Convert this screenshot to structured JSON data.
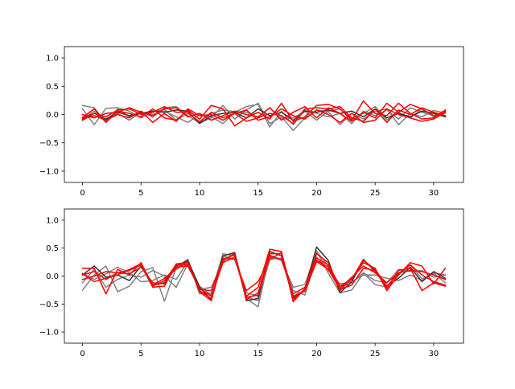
{
  "chart_data": [
    {
      "type": "line",
      "title": "",
      "xlabel": "",
      "ylabel": "",
      "xlim": [
        -1.55,
        32.55
      ],
      "ylim": [
        -1.2,
        1.2
      ],
      "xticks": [
        "0",
        "5",
        "10",
        "15",
        "20",
        "25",
        "30"
      ],
      "yticks": [
        "−1.0",
        "−0.5",
        "0.0",
        "0.5",
        "1.0"
      ],
      "x": [
        0,
        1,
        2,
        3,
        4,
        5,
        6,
        7,
        8,
        9,
        10,
        11,
        12,
        13,
        14,
        15,
        16,
        17,
        18,
        19,
        20,
        21,
        22,
        23,
        24,
        25,
        26,
        27,
        28,
        29,
        30,
        31
      ],
      "series": [
        {
          "color": "#808080",
          "values": [
            0.16,
            0.12,
            -0.14,
            0.1,
            -0.04,
            0.06,
            -0.05,
            0.12,
            0.14,
            -0.02,
            -0.15,
            -0.06,
            0.16,
            -0.08,
            0.08,
            0.2,
            -0.16,
            -0.04,
            -0.28,
            -0.06,
            0.08,
            0.05,
            -0.18,
            0.02,
            -0.08,
            0.06,
            0.1,
            -0.18,
            0.02,
            -0.04,
            0.07,
            0.03
          ]
        },
        {
          "color": "#808080",
          "values": [
            0.1,
            -0.18,
            0.11,
            0.12,
            0.06,
            -0.06,
            0.04,
            0.09,
            -0.1,
            0.02,
            -0.12,
            0.02,
            0.08,
            0.05,
            0.04,
            -0.05,
            0.12,
            -0.08,
            -0.06,
            0.06,
            -0.1,
            0.06,
            0.1,
            -0.08,
            0.02,
            0.14,
            -0.1,
            0.04,
            -0.06,
            0.1,
            -0.04,
            0.05
          ]
        },
        {
          "color": "#808080",
          "values": [
            -0.08,
            0.06,
            -0.12,
            0.02,
            -0.1,
            0.04,
            0.0,
            0.06,
            -0.04,
            -0.14,
            0.0,
            -0.04,
            -0.16,
            0.04,
            0.14,
            0.18,
            -0.22,
            0.06,
            -0.18,
            0.08,
            0.02,
            -0.04,
            0.02,
            -0.16,
            0.06,
            -0.02,
            0.08,
            -0.08,
            0.12,
            0.04,
            -0.02,
            0.02
          ]
        },
        {
          "color": "#333333",
          "values": [
            -0.1,
            0.02,
            -0.08,
            0.04,
            -0.02,
            0.02,
            0.06,
            0.04,
            0.08,
            0.06,
            -0.16,
            -0.02,
            0.02,
            0.04,
            -0.06,
            0.1,
            -0.02,
            0.04,
            -0.1,
            0.06,
            0.04,
            0.08,
            0.02,
            0.06,
            -0.04,
            0.1,
            -0.06,
            0.02,
            -0.04,
            0.06,
            0.02,
            -0.04
          ]
        },
        {
          "color": "#ff0000",
          "values": [
            -0.05,
            0.1,
            -0.14,
            0.06,
            0.02,
            -0.04,
            0.1,
            -0.06,
            -0.1,
            0.08,
            -0.08,
            0.16,
            0.1,
            -0.2,
            -0.06,
            0.04,
            -0.08,
            0.2,
            -0.12,
            -0.04,
            0.16,
            0.18,
            0.1,
            -0.1,
            0.24,
            0.02,
            -0.02,
            0.2,
            0.02,
            -0.08,
            -0.06,
            0.08
          ]
        },
        {
          "color": "#ff0000",
          "values": [
            0.0,
            -0.06,
            0.02,
            0.04,
            0.12,
            0.04,
            -0.02,
            0.1,
            0.12,
            -0.04,
            0.02,
            -0.1,
            -0.02,
            0.06,
            0.0,
            -0.04,
            0.12,
            -0.1,
            0.04,
            0.14,
            -0.06,
            0.12,
            0.02,
            -0.12,
            0.04,
            -0.06,
            0.2,
            0.04,
            0.18,
            0.1,
            -0.02,
            0.06
          ]
        },
        {
          "color": "#ff0000",
          "values": [
            -0.06,
            0.02,
            -0.04,
            0.08,
            0.1,
            0.0,
            0.04,
            0.14,
            0.04,
            0.04,
            -0.14,
            0.04,
            -0.06,
            0.02,
            -0.12,
            -0.06,
            0.02,
            -0.02,
            -0.16,
            0.1,
            0.12,
            0.1,
            0.14,
            -0.06,
            -0.12,
            0.1,
            -0.14,
            0.08,
            0.0,
            0.12,
            0.04,
            -0.02
          ]
        },
        {
          "color": "#ff0000",
          "values": [
            -0.08,
            -0.02,
            -0.1,
            0.0,
            -0.06,
            0.06,
            -0.14,
            0.02,
            -0.12,
            0.1,
            -0.02,
            0.0,
            -0.1,
            0.02,
            0.08,
            -0.1,
            -0.04,
            0.1,
            -0.02,
            -0.08,
            0.08,
            0.0,
            -0.14,
            0.02,
            -0.14,
            -0.1,
            0.1,
            0.0,
            -0.06,
            -0.12,
            -0.08,
            0.04
          ]
        }
      ]
    },
    {
      "type": "line",
      "title": "",
      "xlabel": "",
      "ylabel": "",
      "xlim": [
        -1.55,
        32.55
      ],
      "ylim": [
        -1.2,
        1.2
      ],
      "xticks": [
        "0",
        "5",
        "10",
        "15",
        "20",
        "25",
        "30"
      ],
      "yticks": [
        "−1.0",
        "−0.5",
        "0.0",
        "0.5",
        "1.0"
      ],
      "x": [
        0,
        1,
        2,
        3,
        4,
        5,
        6,
        7,
        8,
        9,
        10,
        11,
        12,
        13,
        14,
        15,
        16,
        17,
        18,
        19,
        20,
        21,
        22,
        23,
        24,
        25,
        26,
        27,
        28,
        29,
        30,
        31
      ],
      "series": [
        {
          "color": "#808080",
          "values": [
            -0.25,
            0.02,
            0.18,
            -0.28,
            -0.18,
            0.08,
            0.15,
            -0.45,
            0.15,
            0.3,
            -0.32,
            -0.3,
            0.4,
            0.36,
            -0.4,
            -0.55,
            0.38,
            0.28,
            -0.2,
            -0.15,
            0.45,
            0.05,
            -0.3,
            -0.25,
            0.05,
            -0.15,
            -0.2,
            0.05,
            0.2,
            -0.05,
            0.05,
            -0.12
          ]
        },
        {
          "color": "#808080",
          "values": [
            -0.12,
            0.12,
            -0.2,
            -0.06,
            0.02,
            -0.02,
            0.1,
            0.0,
            -0.2,
            0.22,
            -0.24,
            -0.2,
            0.26,
            0.42,
            -0.38,
            -0.44,
            0.3,
            0.32,
            -0.38,
            -0.28,
            0.44,
            0.18,
            -0.2,
            -0.12,
            0.06,
            -0.08,
            -0.12,
            0.12,
            0.08,
            0.1,
            -0.02,
            0.02
          ]
        },
        {
          "color": "#808080",
          "values": [
            0.05,
            -0.06,
            0.04,
            0.16,
            0.06,
            -0.1,
            -0.08,
            0.02,
            -0.06,
            0.26,
            -0.18,
            -0.34,
            0.36,
            0.3,
            -0.3,
            -0.36,
            0.34,
            0.28,
            -0.26,
            -0.34,
            0.34,
            0.1,
            -0.14,
            -0.1,
            0.02,
            0.02,
            -0.04,
            -0.08,
            0.02,
            -0.08,
            0.06,
            0.02
          ]
        },
        {
          "color": "#333333",
          "values": [
            0.02,
            0.18,
            -0.02,
            0.02,
            -0.08,
            0.18,
            -0.16,
            -0.12,
            0.18,
            0.28,
            -0.2,
            -0.42,
            0.36,
            0.42,
            -0.44,
            -0.4,
            0.44,
            0.36,
            -0.4,
            -0.24,
            0.52,
            0.28,
            -0.3,
            -0.1,
            0.28,
            0.12,
            -0.18,
            -0.04,
            0.16,
            -0.1,
            0.08,
            -0.04
          ]
        },
        {
          "color": "#ff0000",
          "values": [
            0.14,
            0.14,
            -0.32,
            0.12,
            0.02,
            0.24,
            -0.18,
            -0.08,
            0.2,
            0.2,
            -0.24,
            -0.26,
            0.3,
            0.38,
            -0.36,
            -0.2,
            0.48,
            0.44,
            -0.46,
            -0.22,
            0.4,
            0.24,
            -0.26,
            -0.04,
            0.24,
            0.14,
            -0.26,
            0.02,
            0.24,
            0.18,
            -0.14,
            0.14
          ]
        },
        {
          "color": "#ff0000",
          "values": [
            0.02,
            0.08,
            -0.06,
            0.06,
            0.1,
            0.2,
            -0.2,
            -0.18,
            0.22,
            0.24,
            -0.26,
            -0.4,
            0.28,
            0.4,
            -0.42,
            -0.3,
            0.4,
            0.4,
            -0.42,
            -0.24,
            0.32,
            0.2,
            -0.18,
            -0.06,
            0.3,
            0.08,
            -0.18,
            0.04,
            0.2,
            0.02,
            -0.1,
            -0.16
          ]
        },
        {
          "color": "#ff0000",
          "values": [
            -0.06,
            0.0,
            0.08,
            0.06,
            0.04,
            0.16,
            -0.12,
            -0.14,
            0.16,
            0.18,
            -0.22,
            -0.36,
            0.24,
            0.34,
            -0.38,
            -0.34,
            0.36,
            0.3,
            -0.32,
            -0.2,
            0.28,
            0.16,
            -0.22,
            -0.02,
            0.18,
            0.06,
            -0.12,
            0.06,
            0.1,
            0.08,
            0.02,
            -0.06
          ]
        },
        {
          "color": "#ff0000",
          "values": [
            0.04,
            -0.1,
            -0.04,
            0.02,
            0.12,
            0.22,
            -0.16,
            -0.04,
            0.12,
            0.26,
            -0.28,
            -0.44,
            0.32,
            0.3,
            -0.26,
            -0.1,
            0.3,
            0.42,
            -0.36,
            -0.26,
            0.26,
            0.12,
            -0.24,
            -0.16,
            0.14,
            0.1,
            -0.22,
            0.1,
            0.14,
            -0.26,
            -0.12,
            -0.18
          ]
        }
      ]
    }
  ]
}
